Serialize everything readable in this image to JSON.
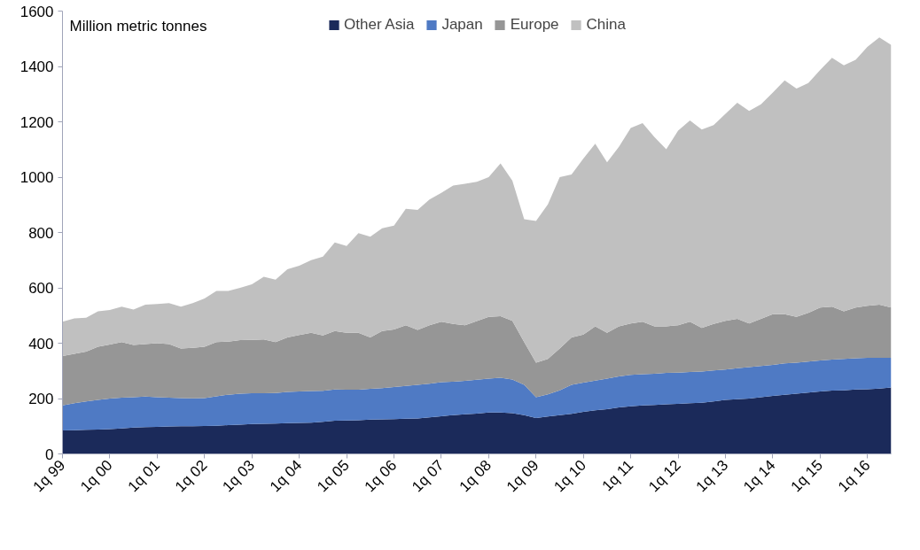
{
  "chart_data": {
    "type": "area",
    "stacked": true,
    "ylabel": "Million metric tonnes",
    "categories": [
      "1q 99",
      null,
      null,
      null,
      "1q 00",
      null,
      null,
      null,
      "1q 01",
      null,
      null,
      null,
      "1q 02",
      null,
      null,
      null,
      "1q 03",
      null,
      null,
      null,
      "1q 04",
      null,
      null,
      null,
      "1q 05",
      null,
      null,
      null,
      "1q 06",
      null,
      null,
      null,
      "1q 07",
      null,
      null,
      null,
      "1q 08",
      null,
      null,
      null,
      "1q 09",
      null,
      null,
      null,
      "1q 10",
      null,
      null,
      null,
      "1q 11",
      null,
      null,
      null,
      "1q 12",
      null,
      null,
      null,
      "1q 13",
      null,
      null,
      null,
      "1q 14",
      null,
      null,
      null,
      "1q 15",
      null,
      null,
      null,
      "1q 16",
      null,
      null
    ],
    "series": [
      {
        "name": "Other Asia",
        "color": "#1b2a5a",
        "values": [
          85,
          86,
          87,
          88,
          90,
          92,
          95,
          97,
          98,
          99,
          100,
          100,
          101,
          102,
          104,
          106,
          108,
          109,
          110,
          111,
          112,
          113,
          116,
          120,
          121,
          122,
          124,
          125,
          126,
          127,
          128,
          132,
          136,
          140,
          143,
          146,
          150,
          150,
          147,
          140,
          130,
          135,
          140,
          145,
          152,
          158,
          162,
          168,
          172,
          175,
          177,
          179,
          181,
          183,
          185,
          190,
          195,
          198,
          200,
          205,
          210,
          214,
          218,
          222,
          226,
          229,
          230,
          233,
          234,
          236,
          240
        ]
      },
      {
        "name": "Japan",
        "color": "#4f7ac4",
        "values": [
          90,
          97,
          103,
          107,
          110,
          111,
          110,
          110,
          107,
          104,
          102,
          101,
          101,
          106,
          110,
          112,
          111,
          110,
          110,
          113,
          114,
          114,
          112,
          113,
          111,
          110,
          111,
          113,
          116,
          119,
          122,
          122,
          123,
          121,
          121,
          122,
          122,
          125,
          122,
          110,
          75,
          80,
          90,
          105,
          106,
          107,
          110,
          112,
          114,
          113,
          113,
          114,
          113,
          113,
          113,
          112,
          110,
          112,
          114,
          113,
          112,
          113,
          112,
          112,
          112,
          112,
          113,
          113,
          113,
          111,
          107
        ]
      },
      {
        "name": "Europe",
        "color": "#969696",
        "values": [
          179,
          179,
          180,
          192,
          195,
          201,
          189,
          190,
          195,
          194,
          179,
          182,
          185,
          196,
          192,
          193,
          193,
          195,
          184,
          197,
          204,
          211,
          200,
          211,
          206,
          206,
          186,
          206,
          208,
          219,
          198,
          211,
          219,
          209,
          201,
          212,
          223,
          223,
          212,
          154,
          125,
          128,
          151,
          171,
          173,
          196,
          166,
          181,
          185,
          190,
          171,
          168,
          171,
          182,
          157,
          168,
          176,
          178,
          157,
          170,
          183,
          178,
          165,
          176,
          191,
          191,
          172,
          183,
          188,
          192,
          182
        ]
      },
      {
        "name": "China",
        "color": "#c0c0c0",
        "values": [
          124,
          128,
          122,
          128,
          125,
          128,
          128,
          142,
          142,
          148,
          151,
          162,
          175,
          185,
          183,
          189,
          201,
          226,
          226,
          246,
          250,
          262,
          285,
          320,
          313,
          360,
          364,
          371,
          375,
          421,
          434,
          454,
          465,
          500,
          511,
          503,
          505,
          552,
          506,
          444,
          512,
          559,
          619,
          589,
          636,
          660,
          616,
          649,
          707,
          717,
          684,
          640,
          703,
          727,
          717,
          718,
          748,
          781,
          768,
          775,
          801,
          845,
          825,
          830,
          858,
          899,
          889,
          895,
          936,
          966,
          949
        ]
      }
    ],
    "ylim": [
      0,
      1600
    ],
    "yticks": [
      0,
      200,
      400,
      600,
      800,
      1000,
      1200,
      1400,
      1600
    ],
    "legend": "top"
  }
}
